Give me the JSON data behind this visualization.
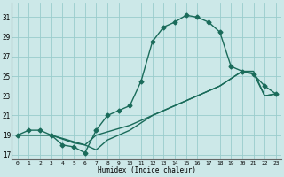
{
  "xlabel": "Humidex (Indice chaleur)",
  "bg_color": "#cce8e8",
  "grid_color": "#99cccc",
  "line_color": "#1a6b5a",
  "xlim": [
    -0.5,
    23.5
  ],
  "ylim": [
    16.5,
    32.5
  ],
  "xticks": [
    0,
    1,
    2,
    3,
    4,
    5,
    6,
    7,
    8,
    9,
    10,
    11,
    12,
    13,
    14,
    15,
    16,
    17,
    18,
    19,
    20,
    21,
    22,
    23
  ],
  "yticks": [
    17,
    19,
    21,
    23,
    25,
    27,
    29,
    31
  ],
  "curve1_x": [
    0,
    1,
    2,
    3,
    4,
    5,
    6,
    7,
    8,
    9,
    10,
    11,
    12,
    13,
    14,
    15,
    16,
    17,
    18,
    19,
    20,
    21,
    22,
    23
  ],
  "curve1_y": [
    19,
    19.5,
    19.5,
    19,
    18,
    17.8,
    17.2,
    19.5,
    21,
    21.5,
    22,
    24.5,
    28.5,
    30,
    30.5,
    31.2,
    31,
    30.5,
    29.5,
    26,
    25.5,
    25.2,
    24.0,
    23.2
  ],
  "curve2_x": [
    0,
    2,
    3,
    6,
    7,
    10,
    13,
    15,
    18,
    20,
    21,
    22,
    23
  ],
  "curve2_y": [
    19,
    19,
    19,
    18.0,
    19.0,
    20.0,
    21.5,
    22.5,
    24.0,
    25.5,
    25.5,
    23.0,
    23.2
  ],
  "curve3_x": [
    0,
    2,
    3,
    5,
    6,
    7,
    8,
    10,
    12,
    14,
    16,
    18,
    20,
    21,
    22,
    23
  ],
  "curve3_y": [
    19,
    19,
    19,
    18.2,
    18.0,
    17.5,
    18.5,
    19.5,
    21.0,
    22.0,
    23.0,
    24.0,
    25.5,
    25.3,
    23.0,
    23.2
  ]
}
